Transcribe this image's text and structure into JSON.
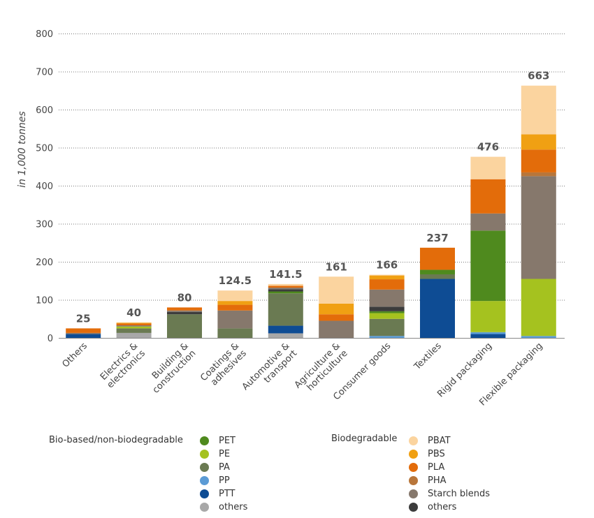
{
  "chart_data": {
    "type": "bar",
    "stacked": true,
    "ylabel": "in 1,000 tonnes",
    "ylim": [
      0,
      800
    ],
    "yticks": [
      0,
      100,
      200,
      300,
      400,
      500,
      600,
      700,
      800
    ],
    "grid": "horizontal dotted",
    "categories": [
      "Others",
      "Electrics & electronics",
      "Building & construction",
      "Coatings & adhesives",
      "Automotive & transport",
      "Agriculture & horticulture",
      "Consumer goods",
      "Textiles",
      "Rigid packaging",
      "Flexible packaging"
    ],
    "category_lines": [
      [
        "Others"
      ],
      [
        "Electrics &",
        "electronics"
      ],
      [
        "Building &",
        "construction"
      ],
      [
        "Coatings &",
        "adhesives"
      ],
      [
        "Automotive &",
        "transport"
      ],
      [
        "Agriculture &",
        "horticulture"
      ],
      [
        "Consumer goods"
      ],
      [
        "Textiles"
      ],
      [
        "Rigid packaging"
      ],
      [
        "Flexible packaging"
      ]
    ],
    "totals": [
      25,
      40,
      80,
      124.5,
      141.5,
      161,
      166,
      237,
      476,
      663
    ],
    "total_labels": [
      "25",
      "40",
      "80",
      "124.5",
      "141.5",
      "161",
      "166",
      "237",
      "476",
      "663"
    ],
    "series": [
      {
        "name": "others",
        "group": "Bio-based/non-biodegradable",
        "color": "#a8a8a8",
        "values": [
          0,
          13,
          0,
          0,
          12,
          0,
          0,
          0,
          0,
          0
        ]
      },
      {
        "name": "PTT",
        "group": "Bio-based/non-biodegradable",
        "color": "#0e4c94",
        "values": [
          10,
          0,
          0,
          0,
          20,
          0,
          0,
          155,
          10,
          0
        ]
      },
      {
        "name": "PP",
        "group": "Bio-based/non-biodegradable",
        "color": "#5b9bd5",
        "values": [
          0,
          0,
          0,
          0,
          0,
          0,
          5,
          0,
          5,
          5
        ]
      },
      {
        "name": "PA",
        "group": "Bio-based/non-biodegradable",
        "color": "#6a7a52",
        "values": [
          0,
          12,
          62,
          25,
          85,
          0,
          45,
          12,
          0,
          0
        ]
      },
      {
        "name": "PE",
        "group": "Bio-based/non-biodegradable",
        "color": "#a5c21f",
        "values": [
          0,
          5,
          0,
          0,
          0,
          0,
          15,
          0,
          82,
          150
        ]
      },
      {
        "name": "PET",
        "group": "Bio-based/non-biodegradable",
        "color": "#4f8a1e",
        "values": [
          0,
          0,
          0,
          0,
          5,
          0,
          5,
          12,
          185,
          0
        ]
      },
      {
        "name": "others",
        "group": "Biodegradable",
        "color": "#3c3c3c",
        "values": [
          0,
          0,
          6,
          0,
          6,
          0,
          12,
          0,
          0,
          0
        ]
      },
      {
        "name": "Starch blends",
        "group": "Biodegradable",
        "color": "#86786c",
        "values": [
          3,
          3,
          4,
          47,
          4,
          45,
          45,
          0,
          45,
          270
        ]
      },
      {
        "name": "PHA",
        "group": "Biodegradable",
        "color": "#b8763a",
        "values": [
          0,
          0,
          0,
          0,
          0,
          0,
          0,
          0,
          0,
          10
        ]
      },
      {
        "name": "PLA",
        "group": "Biodegradable",
        "color": "#e36c0a",
        "values": [
          12,
          5,
          8,
          15,
          5,
          17,
          27,
          58,
          90,
          60
        ]
      },
      {
        "name": "PBS",
        "group": "Biodegradable",
        "color": "#f0a013",
        "values": [
          0,
          2,
          0,
          10,
          0,
          28,
          10,
          0,
          0,
          40
        ]
      },
      {
        "name": "PBAT",
        "group": "Biodegradable",
        "color": "#fbd49f",
        "values": [
          0,
          0,
          0,
          27.5,
          4.5,
          71,
          2,
          0,
          59,
          128
        ]
      }
    ]
  },
  "legend": {
    "groups": [
      {
        "title": "Bio-based/non-biodegradable",
        "items": [
          {
            "label": "PET",
            "color": "#4f8a1e"
          },
          {
            "label": "PE",
            "color": "#a5c21f"
          },
          {
            "label": "PA",
            "color": "#6a7a52"
          },
          {
            "label": "PP",
            "color": "#5b9bd5"
          },
          {
            "label": "PTT",
            "color": "#0e4c94"
          },
          {
            "label": "others",
            "color": "#a8a8a8"
          }
        ]
      },
      {
        "title": "Biodegradable",
        "items": [
          {
            "label": "PBAT",
            "color": "#fbd49f"
          },
          {
            "label": "PBS",
            "color": "#f0a013"
          },
          {
            "label": "PLA",
            "color": "#e36c0a"
          },
          {
            "label": "PHA",
            "color": "#b8763a"
          },
          {
            "label": "Starch blends",
            "color": "#86786c"
          },
          {
            "label": "others",
            "color": "#3c3c3c"
          }
        ]
      }
    ]
  }
}
